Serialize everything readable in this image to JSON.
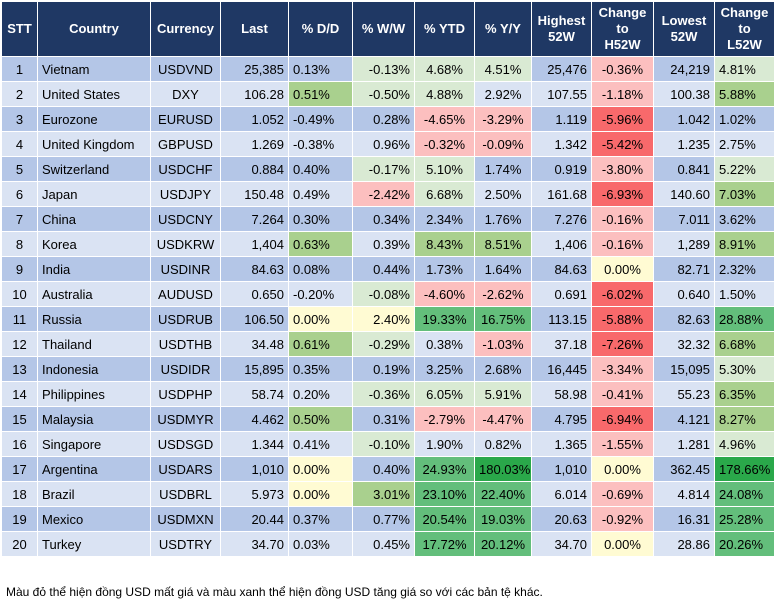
{
  "chart_data": {
    "type": "table",
    "columns": [
      "STT",
      "Country",
      "Currency",
      "Last",
      "% D/D",
      "% W/W",
      "% YTD",
      "% Y/Y",
      "Highest 52W",
      "Change to H52W",
      "Lowest 52W",
      "Change to L52W"
    ],
    "rows": [
      [
        "1",
        "Vietnam",
        "USDVND",
        "25,385",
        "0.13%",
        "-0.13%",
        "4.68%",
        "4.51%",
        "25,476",
        "-0.36%",
        "24,219",
        "4.81%"
      ],
      [
        "2",
        "United States",
        "DXY",
        "106.28",
        "0.51%",
        "-0.50%",
        "4.88%",
        "2.92%",
        "107.55",
        "-1.18%",
        "100.38",
        "5.88%"
      ],
      [
        "3",
        "Eurozone",
        "EURUSD",
        "1.052",
        "-0.49%",
        "0.28%",
        "-4.65%",
        "-3.29%",
        "1.119",
        "-5.96%",
        "1.042",
        "1.02%"
      ],
      [
        "4",
        "United Kingdom",
        "GBPUSD",
        "1.269",
        "-0.38%",
        "0.96%",
        "-0.32%",
        "-0.09%",
        "1.342",
        "-5.42%",
        "1.235",
        "2.75%"
      ],
      [
        "5",
        "Switzerland",
        "USDCHF",
        "0.884",
        "0.40%",
        "-0.17%",
        "5.10%",
        "1.74%",
        "0.919",
        "-3.80%",
        "0.841",
        "5.22%"
      ],
      [
        "6",
        "Japan",
        "USDJPY",
        "150.48",
        "0.49%",
        "-2.42%",
        "6.68%",
        "2.50%",
        "161.68",
        "-6.93%",
        "140.60",
        "7.03%"
      ],
      [
        "7",
        "China",
        "USDCNY",
        "7.264",
        "0.30%",
        "0.34%",
        "2.34%",
        "1.76%",
        "7.276",
        "-0.16%",
        "7.011",
        "3.62%"
      ],
      [
        "8",
        "Korea",
        "USDKRW",
        "1,404",
        "0.63%",
        "0.39%",
        "8.43%",
        "8.51%",
        "1,406",
        "-0.16%",
        "1,289",
        "8.91%"
      ],
      [
        "9",
        "India",
        "USDINR",
        "84.63",
        "0.08%",
        "0.44%",
        "1.73%",
        "1.64%",
        "84.63",
        "0.00%",
        "82.71",
        "2.32%"
      ],
      [
        "10",
        "Australia",
        "AUDUSD",
        "0.650",
        "-0.20%",
        "-0.08%",
        "-4.60%",
        "-2.62%",
        "0.691",
        "-6.02%",
        "0.640",
        "1.50%"
      ],
      [
        "11",
        "Russia",
        "USDRUB",
        "106.50",
        "0.00%",
        "2.40%",
        "19.33%",
        "16.75%",
        "113.15",
        "-5.88%",
        "82.63",
        "28.88%"
      ],
      [
        "12",
        "Thailand",
        "USDTHB",
        "34.48",
        "0.61%",
        "-0.29%",
        "0.38%",
        "-1.03%",
        "37.18",
        "-7.26%",
        "32.32",
        "6.68%"
      ],
      [
        "13",
        "Indonesia",
        "USDIDR",
        "15,895",
        "0.35%",
        "0.19%",
        "3.25%",
        "2.68%",
        "16,445",
        "-3.34%",
        "15,095",
        "5.30%"
      ],
      [
        "14",
        "Philippines",
        "USDPHP",
        "58.74",
        "0.20%",
        "-0.36%",
        "6.05%",
        "5.91%",
        "58.98",
        "-0.41%",
        "55.23",
        "6.35%"
      ],
      [
        "15",
        "Malaysia",
        "USDMYR",
        "4.462",
        "0.50%",
        "0.31%",
        "-2.79%",
        "-4.47%",
        "4.795",
        "-6.94%",
        "4.121",
        "8.27%"
      ],
      [
        "16",
        "Singapore",
        "USDSGD",
        "1.344",
        "0.41%",
        "-0.10%",
        "1.90%",
        "0.82%",
        "1.365",
        "-1.55%",
        "1.281",
        "4.96%"
      ],
      [
        "17",
        "Argentina",
        "USDARS",
        "1,010",
        "0.00%",
        "0.40%",
        "24.93%",
        "180.03%",
        "1,010",
        "0.00%",
        "362.45",
        "178.66%"
      ],
      [
        "18",
        "Brazil",
        "USDBRL",
        "5.973",
        "0.00%",
        "3.01%",
        "23.10%",
        "22.40%",
        "6.014",
        "-0.69%",
        "4.814",
        "24.08%"
      ],
      [
        "19",
        "Mexico",
        "USDMXN",
        "20.44",
        "0.37%",
        "0.77%",
        "20.54%",
        "19.03%",
        "20.63",
        "-0.92%",
        "16.31",
        "25.28%"
      ],
      [
        "20",
        "Turkey",
        "USDTRY",
        "34.70",
        "0.03%",
        "0.45%",
        "17.72%",
        "20.12%",
        "34.70",
        "0.00%",
        "28.86",
        "20.26%"
      ]
    ],
    "color_scale": {
      "negative_strong": "#f8696b",
      "negative_light": "#fcbfbf",
      "neutral": "#fffbd3",
      "positive_light": "#d9ead3",
      "positive_mid": "#a9d08e",
      "positive_strong": "#63be7b",
      "positive_max": "#2aa84a"
    },
    "colors": {
      "header_bg": "#1f3864",
      "row_odd": "#b4c6e7",
      "row_even": "#dae3f3"
    }
  },
  "header_lines": [
    [
      "STT"
    ],
    [
      "Country"
    ],
    [
      "Currency"
    ],
    [
      "Last"
    ],
    [
      "% D/D"
    ],
    [
      "% W/W"
    ],
    [
      "% YTD"
    ],
    [
      "% Y/Y"
    ],
    [
      "Highest",
      "52W"
    ],
    [
      "Change",
      "to",
      "H52W"
    ],
    [
      "Lowest",
      "52W"
    ],
    [
      "Change",
      "to",
      "L52W"
    ]
  ],
  "footnote": "Màu đỏ thể hiện đồng USD mất giá và màu xanh thể hiện đồng USD tăng giá so với các bản tệ khác."
}
